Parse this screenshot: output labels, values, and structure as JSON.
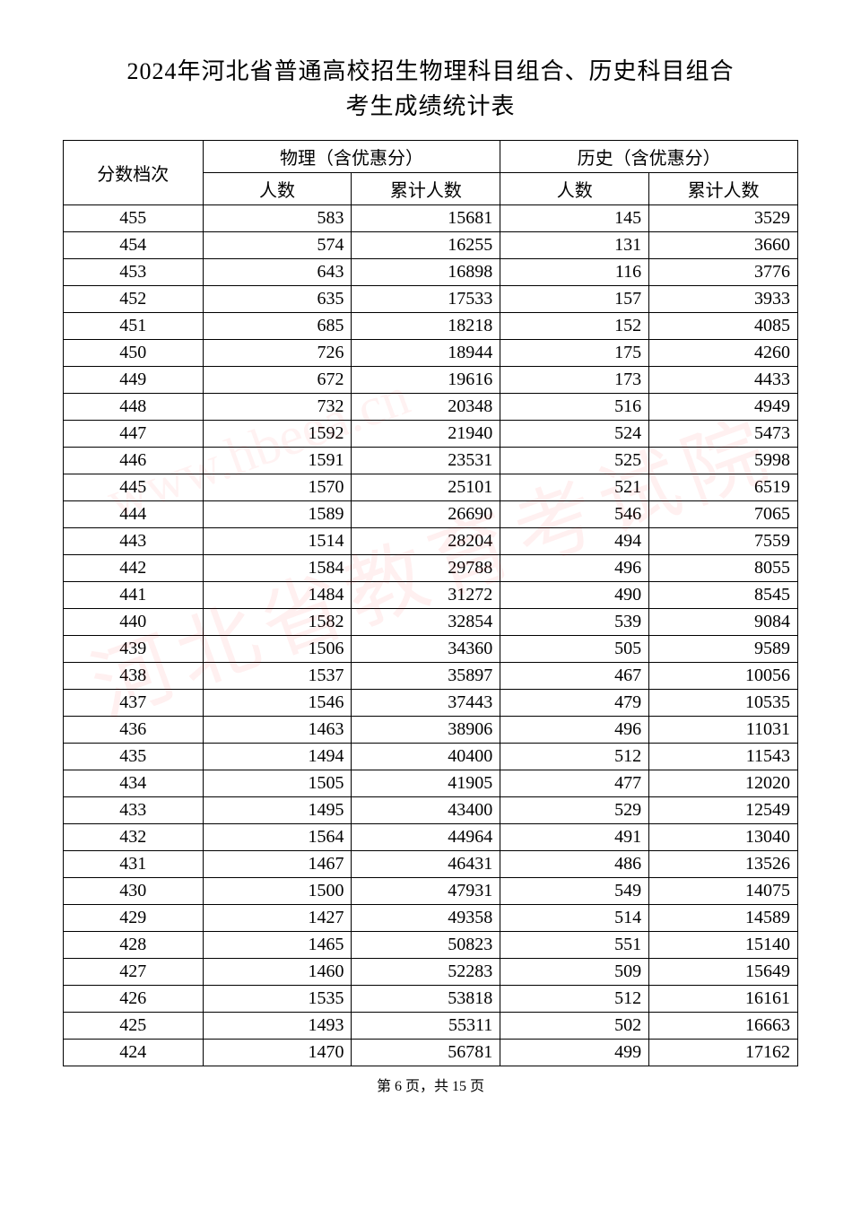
{
  "title_line1": "2024年河北省普通高校招生物理科目组合、历史科目组合",
  "title_line2": "考生成绩统计表",
  "headers": {
    "score": "分数档次",
    "physics": "物理（含优惠分）",
    "history": "历史（含优惠分）",
    "count": "人数",
    "cumulative": "累计人数"
  },
  "footer": "第 6 页，共 15 页",
  "watermark1": "河北省教育考试院",
  "watermark2": "www.hbeea.cn",
  "table": {
    "type": "table",
    "columns": [
      "分数档次",
      "物理人数",
      "物理累计人数",
      "历史人数",
      "历史累计人数"
    ],
    "border_color": "#000000",
    "background_color": "#ffffff",
    "font_size": 20,
    "header_align": "center",
    "score_align": "center",
    "data_align": "right",
    "rows": [
      [
        455,
        583,
        15681,
        145,
        3529
      ],
      [
        454,
        574,
        16255,
        131,
        3660
      ],
      [
        453,
        643,
        16898,
        116,
        3776
      ],
      [
        452,
        635,
        17533,
        157,
        3933
      ],
      [
        451,
        685,
        18218,
        152,
        4085
      ],
      [
        450,
        726,
        18944,
        175,
        4260
      ],
      [
        449,
        672,
        19616,
        173,
        4433
      ],
      [
        448,
        732,
        20348,
        516,
        4949
      ],
      [
        447,
        1592,
        21940,
        524,
        5473
      ],
      [
        446,
        1591,
        23531,
        525,
        5998
      ],
      [
        445,
        1570,
        25101,
        521,
        6519
      ],
      [
        444,
        1589,
        26690,
        546,
        7065
      ],
      [
        443,
        1514,
        28204,
        494,
        7559
      ],
      [
        442,
        1584,
        29788,
        496,
        8055
      ],
      [
        441,
        1484,
        31272,
        490,
        8545
      ],
      [
        440,
        1582,
        32854,
        539,
        9084
      ],
      [
        439,
        1506,
        34360,
        505,
        9589
      ],
      [
        438,
        1537,
        35897,
        467,
        10056
      ],
      [
        437,
        1546,
        37443,
        479,
        10535
      ],
      [
        436,
        1463,
        38906,
        496,
        11031
      ],
      [
        435,
        1494,
        40400,
        512,
        11543
      ],
      [
        434,
        1505,
        41905,
        477,
        12020
      ],
      [
        433,
        1495,
        43400,
        529,
        12549
      ],
      [
        432,
        1564,
        44964,
        491,
        13040
      ],
      [
        431,
        1467,
        46431,
        486,
        13526
      ],
      [
        430,
        1500,
        47931,
        549,
        14075
      ],
      [
        429,
        1427,
        49358,
        514,
        14589
      ],
      [
        428,
        1465,
        50823,
        551,
        15140
      ],
      [
        427,
        1460,
        52283,
        509,
        15649
      ],
      [
        426,
        1535,
        53818,
        512,
        16161
      ],
      [
        425,
        1493,
        55311,
        502,
        16663
      ],
      [
        424,
        1470,
        56781,
        499,
        17162
      ]
    ]
  }
}
